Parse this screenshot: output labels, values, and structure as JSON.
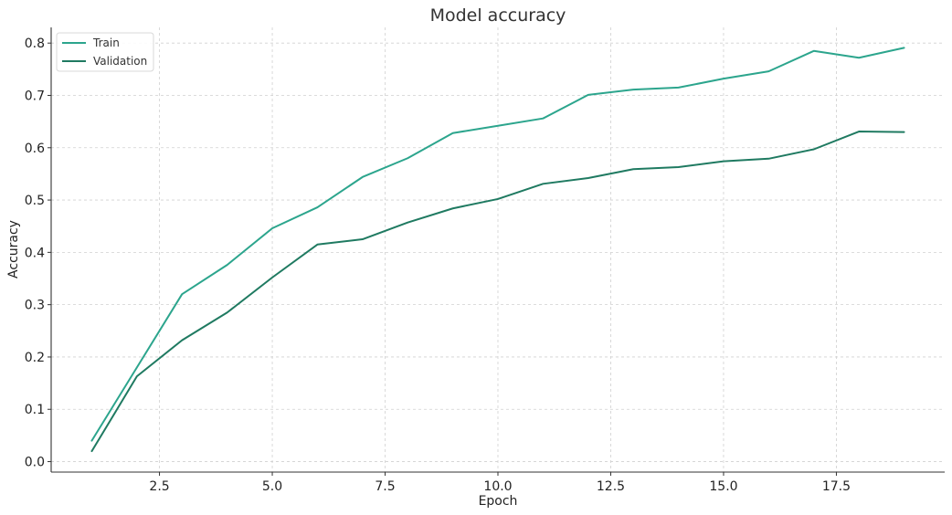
{
  "chart_data": {
    "type": "line",
    "title": "Model accuracy",
    "xlabel": "Epoch",
    "ylabel": "Accuracy",
    "xlim": [
      0.1,
      19.9
    ],
    "ylim": [
      -0.02,
      0.83
    ],
    "xticks": [
      2.5,
      5.0,
      7.5,
      10.0,
      12.5,
      15.0,
      17.5
    ],
    "xtick_labels": [
      "2.5",
      "5.0",
      "7.5",
      "10.0",
      "12.5",
      "15.0",
      "17.5"
    ],
    "yticks": [
      0.0,
      0.1,
      0.2,
      0.3,
      0.4,
      0.5,
      0.6,
      0.7,
      0.8
    ],
    "ytick_labels": [
      "0.0",
      "0.1",
      "0.2",
      "0.3",
      "0.4",
      "0.5",
      "0.6",
      "0.7",
      "0.8"
    ],
    "grid": true,
    "legend_position": "top-left",
    "x": [
      1,
      2,
      3,
      4,
      5,
      6,
      7,
      8,
      9,
      10,
      11,
      12,
      13,
      14,
      15,
      16,
      17,
      18,
      19
    ],
    "series": [
      {
        "name": "Train",
        "color": "#2ca58d",
        "values": [
          0.04,
          0.18,
          0.32,
          0.376,
          0.446,
          0.486,
          0.544,
          0.58,
          0.628,
          0.642,
          0.656,
          0.701,
          0.711,
          0.715,
          0.732,
          0.746,
          0.785,
          0.772,
          0.791
        ]
      },
      {
        "name": "Validation",
        "color": "#1f7a61",
        "values": [
          0.02,
          0.163,
          0.232,
          0.285,
          0.352,
          0.415,
          0.425,
          0.457,
          0.484,
          0.502,
          0.531,
          0.542,
          0.559,
          0.563,
          0.574,
          0.579,
          0.597,
          0.631,
          0.63
        ]
      }
    ]
  }
}
